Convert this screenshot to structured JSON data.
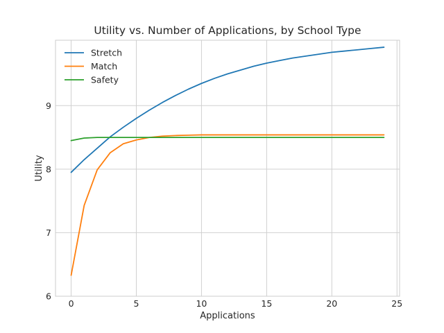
{
  "chart_data": {
    "type": "line",
    "title": "Utility vs. Number of Applications, by School Type",
    "xlabel": "Applications",
    "ylabel": "Utility",
    "xlim": [
      -1.2,
      25.2
    ],
    "ylim": [
      6.0,
      10.03
    ],
    "xticks": [
      0,
      5,
      10,
      15,
      20,
      25
    ],
    "yticks": [
      6,
      7,
      8,
      9
    ],
    "grid": true,
    "legend_position": "top-left",
    "x": [
      0,
      1,
      2,
      3,
      4,
      5,
      6,
      7,
      8,
      9,
      10,
      11,
      12,
      13,
      14,
      15,
      16,
      17,
      18,
      19,
      20,
      21,
      22,
      23,
      24
    ],
    "series": [
      {
        "name": "Stretch",
        "color": "#1f77b4",
        "values": [
          7.95,
          8.15,
          8.33,
          8.51,
          8.66,
          8.8,
          8.93,
          9.05,
          9.16,
          9.26,
          9.35,
          9.43,
          9.5,
          9.56,
          9.62,
          9.67,
          9.71,
          9.75,
          9.78,
          9.81,
          9.84,
          9.86,
          9.88,
          9.9,
          9.92
        ]
      },
      {
        "name": "Match",
        "color": "#ff7f0e",
        "values": [
          6.33,
          7.43,
          7.99,
          8.26,
          8.4,
          8.46,
          8.5,
          8.52,
          8.53,
          8.535,
          8.54,
          8.54,
          8.54,
          8.54,
          8.54,
          8.54,
          8.54,
          8.54,
          8.54,
          8.54,
          8.54,
          8.54,
          8.54,
          8.54,
          8.54
        ]
      },
      {
        "name": "Safety",
        "color": "#2ca02c",
        "values": [
          8.45,
          8.49,
          8.5,
          8.5,
          8.5,
          8.5,
          8.5,
          8.5,
          8.5,
          8.5,
          8.5,
          8.5,
          8.5,
          8.5,
          8.5,
          8.5,
          8.5,
          8.5,
          8.5,
          8.5,
          8.5,
          8.5,
          8.5,
          8.5,
          8.5
        ]
      }
    ]
  }
}
